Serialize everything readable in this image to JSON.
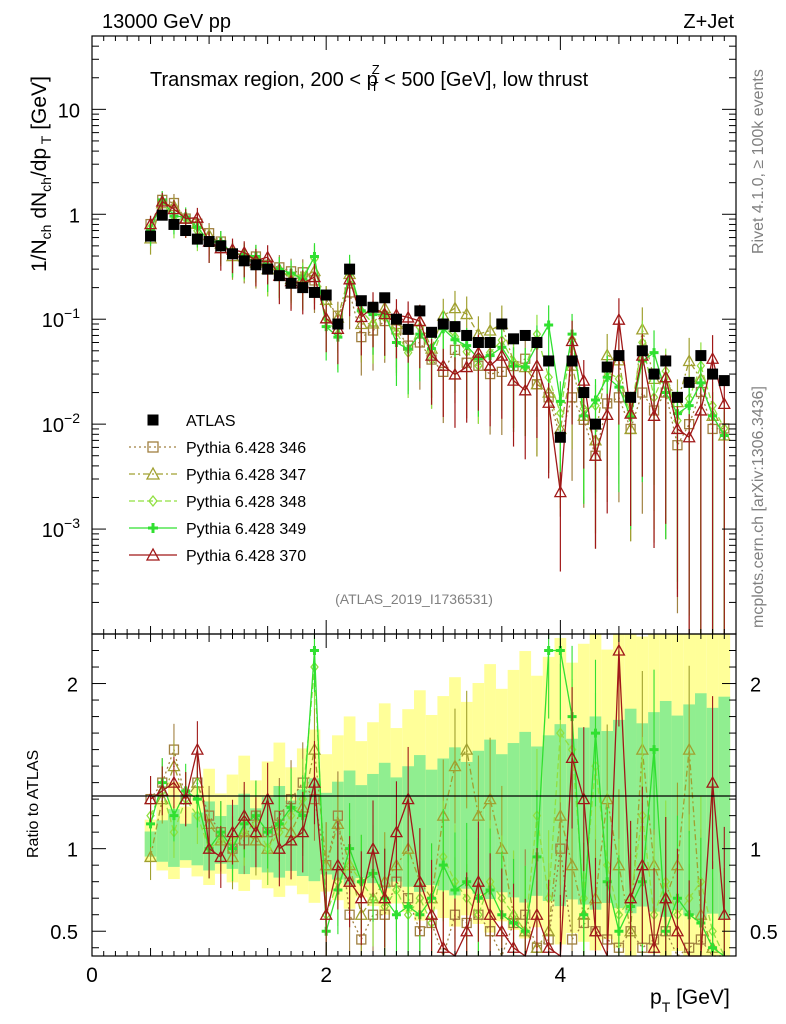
{
  "header": {
    "energy": "13000 GeV pp",
    "process": "Z+Jet"
  },
  "side_labels": {
    "rivet": "Rivet 4.1.0, ≥ 100k events",
    "mcplots": "mcplots.cern.ch [arXiv:1306.3436]"
  },
  "watermark": "(ATLAS_2019_I1736531)",
  "ratio_ylabel": "Ratio to ATLAS",
  "chart_data": {
    "type": "scatter",
    "title": "Transmax region, 200 < pTZ < 500 [GeV], low thrust",
    "title_parts": {
      "pre": "Transmax region, 200 < p",
      "sup": "Z",
      "sub": "T",
      "post": " < 500 [GeV], low thrust"
    },
    "xlabel": "pT [GeV]",
    "xlabel_parts": {
      "main": "p",
      "sub": "T",
      "unit": " [GeV]"
    },
    "ylabel": "1/Nch dNch/dpT [GeV]",
    "xlim": [
      0,
      5.5
    ],
    "ylim": [
      0.0001,
      50
    ],
    "ratio_ylim": [
      0.35,
      2.3
    ],
    "x_ticks": [
      "0",
      "2",
      "4"
    ],
    "y_ticks": [
      {
        "value": 0.001,
        "base": "10",
        "exp": "−3"
      },
      {
        "value": 0.01,
        "base": "10",
        "exp": "−2"
      },
      {
        "value": 0.1,
        "base": "10",
        "exp": "−1"
      },
      {
        "value": 1,
        "base": "1",
        "exp": ""
      },
      {
        "value": 10,
        "base": "10",
        "exp": ""
      }
    ],
    "ratio_ticks": [
      "0.5",
      "1",
      "2"
    ],
    "legend": [
      "ATLAS",
      "Pythia 6.428 346",
      "Pythia 6.428 347",
      "Pythia 6.428 348",
      "Pythia 6.428 349",
      "Pythia 6.428 370"
    ],
    "x": [
      0.5,
      0.6,
      0.7,
      0.8,
      0.9,
      1.0,
      1.1,
      1.2,
      1.3,
      1.4,
      1.5,
      1.6,
      1.7,
      1.8,
      1.9,
      2.0,
      2.1,
      2.2,
      2.3,
      2.4,
      2.5,
      2.6,
      2.7,
      2.8,
      2.9,
      3.0,
      3.1,
      3.2,
      3.3,
      3.4,
      3.5,
      3.6,
      3.7,
      3.8,
      3.9,
      4.0,
      4.1,
      4.2,
      4.3,
      4.4,
      4.5,
      4.6,
      4.7,
      4.8,
      4.9,
      5.0,
      5.1,
      5.2,
      5.3,
      5.4
    ],
    "data": {
      "name": "ATLAS",
      "values": [
        0.62,
        0.98,
        0.8,
        0.7,
        0.58,
        0.55,
        0.5,
        0.42,
        0.36,
        0.33,
        0.3,
        0.26,
        0.22,
        0.2,
        0.18,
        0.17,
        0.09,
        0.3,
        0.15,
        0.13,
        0.16,
        0.1,
        0.08,
        0.12,
        0.075,
        0.09,
        0.085,
        0.07,
        0.06,
        0.06,
        0.09,
        0.065,
        0.07,
        0.06,
        0.04,
        0.0075,
        0.04,
        0.02,
        0.01,
        0.035,
        0.045,
        0.018,
        0.05,
        0.03,
        0.04,
        0.018,
        0.025,
        0.045,
        0.03,
        0.026
      ]
    },
    "series": [
      {
        "name": "Pythia 6.428 346",
        "color": "#a08040",
        "marker": "square",
        "dash": "2,3",
        "ratio": [
          1.3,
          1.4,
          1.6,
          1.3,
          1.4,
          1.2,
          1.1,
          1.0,
          1.05,
          1.2,
          1.1,
          1.2,
          1.3,
          1.4,
          1.3,
          0.9,
          1.2,
          0.6,
          0.45,
          0.6,
          0.6,
          0.8,
          0.7,
          0.5,
          0.55,
          0.35,
          0.6,
          0.55,
          0.6,
          0.5,
          0.35,
          0.55,
          0.6,
          0.4,
          0.45,
          1.0,
          0.45,
          0.55,
          0.5,
          0.45,
          0.4,
          0.5,
          0.4,
          0.45,
          0.5,
          0.35,
          0.4,
          0.45,
          0.3,
          0.35
        ]
      },
      {
        "name": "Pythia 6.428 347",
        "color": "#a0a030",
        "marker": "triangle",
        "dash": "6,3,2,3",
        "ratio": [
          0.95,
          1.3,
          1.5,
          1.3,
          1.4,
          1.15,
          1.05,
          0.95,
          1.1,
          1.05,
          1.0,
          1.15,
          1.1,
          1.25,
          1.6,
          0.9,
          1.15,
          0.9,
          0.6,
          0.7,
          0.8,
          0.9,
          1.0,
          0.8,
          0.7,
          1.2,
          1.5,
          1.6,
          1.2,
          1.3,
          1.0,
          0.6,
          0.5,
          0.4,
          0.5,
          1.2,
          0.9,
          0.6,
          0.7,
          1.3,
          0.9,
          0.5,
          1.6,
          0.9,
          0.7,
          0.9,
          1.6,
          0.6,
          0.4,
          0.3
        ]
      },
      {
        "name": "Pythia 6.428 348",
        "color": "#90e040",
        "marker": "diamond",
        "dash": "6,3",
        "ratio": [
          1.2,
          1.35,
          1.1,
          1.3,
          1.2,
          1.0,
          1.05,
          1.05,
          1.1,
          1.15,
          1.0,
          1.1,
          1.2,
          1.3,
          2.1,
          0.6,
          0.8,
          0.9,
          0.8,
          0.7,
          0.65,
          0.75,
          0.6,
          0.7,
          0.55,
          0.95,
          0.8,
          0.7,
          0.6,
          0.8,
          0.7,
          0.6,
          0.5,
          1.2,
          0.7,
          1.7,
          1.6,
          0.7,
          1.5,
          0.9,
          0.6,
          0.7,
          1.2,
          0.6,
          0.8,
          0.6,
          0.7,
          0.8,
          0.5,
          0.35
        ]
      },
      {
        "name": "Pythia 6.428 349",
        "color": "#30e030",
        "marker": "cross",
        "dash": "",
        "ratio": [
          1.15,
          1.4,
          1.2,
          1.35,
          1.3,
          1.0,
          1.1,
          1.0,
          1.15,
          1.2,
          1.1,
          1.15,
          1.25,
          1.2,
          2.2,
          0.5,
          0.75,
          1.0,
          0.8,
          0.85,
          0.7,
          0.6,
          0.65,
          0.6,
          0.7,
          0.9,
          0.75,
          0.8,
          0.7,
          0.75,
          0.6,
          0.55,
          0.5,
          0.95,
          2.2,
          2.2,
          1.8,
          0.6,
          1.7,
          0.8,
          0.5,
          0.65,
          0.8,
          1.6,
          0.5,
          0.7,
          0.6,
          0.55,
          0.4,
          0.3
        ]
      },
      {
        "name": "Pythia 6.428 370",
        "color": "#a01818",
        "marker": "triangle",
        "dash": "",
        "ratio": [
          1.3,
          1.35,
          1.4,
          1.3,
          1.6,
          1.0,
          0.95,
          1.1,
          1.2,
          1.1,
          1.3,
          1.0,
          1.05,
          1.1,
          1.4,
          0.6,
          0.9,
          0.8,
          0.7,
          1.0,
          0.7,
          1.1,
          1.3,
          0.8,
          0.6,
          0.4,
          0.35,
          0.5,
          0.8,
          0.6,
          0.5,
          0.4,
          0.3,
          0.6,
          0.4,
          0.3,
          1.55,
          1.3,
          0.5,
          0.35,
          2.2,
          0.7,
          0.9,
          0.4,
          0.7,
          0.5,
          0.3,
          0.3,
          1.4,
          0.6
        ]
      }
    ]
  }
}
